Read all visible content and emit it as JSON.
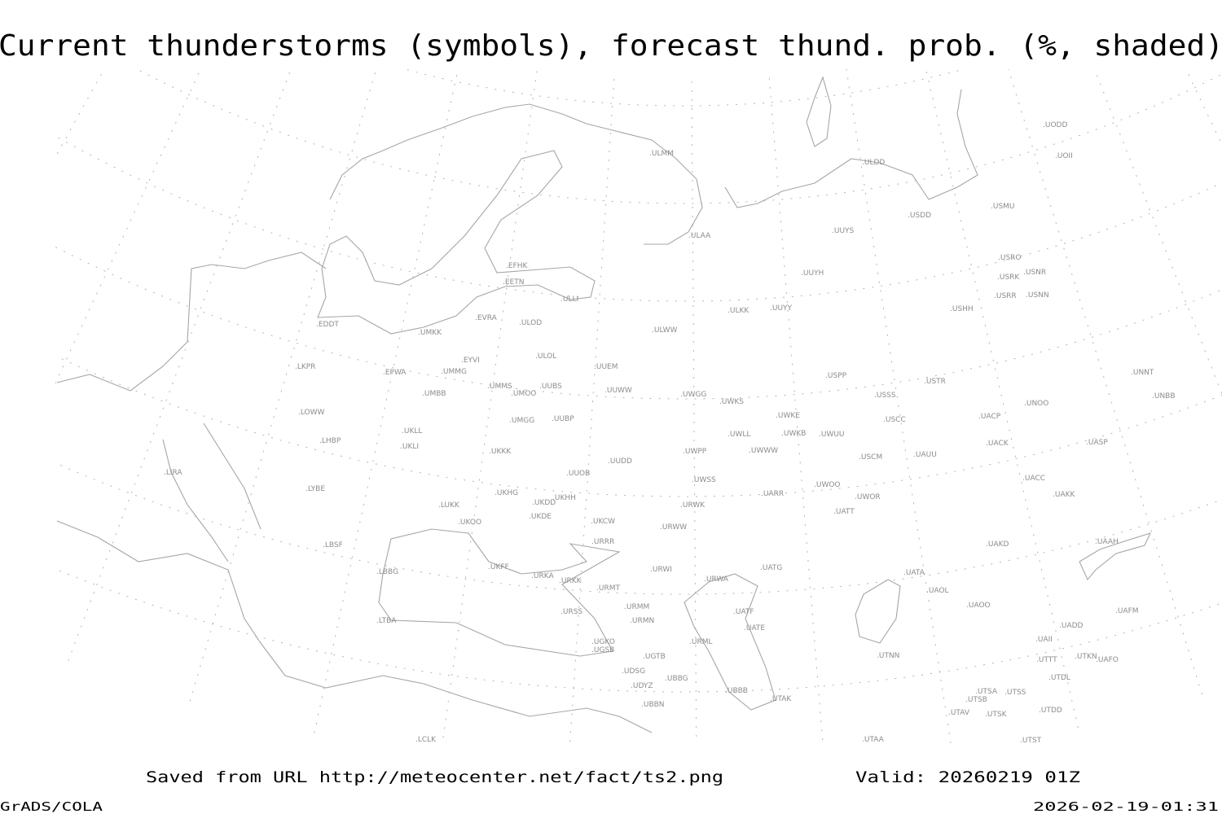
{
  "title": "Current thunderstorms (symbols), forecast thund. prob. (%, shaded)",
  "footer": {
    "saved_from": "Saved from URL http://meteocenter.net/fact/ts2.png",
    "valid": "Valid: 20260219 01Z",
    "software": "GrADS/COLA",
    "timestamp": "2026-02-19-01:31"
  },
  "map": {
    "coastline_color": "#a6a6a6",
    "label_color": "#8c8c8c",
    "graticule": "dotted",
    "thunderstorm_symbols_visible": false,
    "probability_shading_visible": false,
    "stations": [
      "UODD",
      "UOII",
      "ULMM",
      "ULDD",
      "USDD",
      "USMU",
      "UUYS",
      "ULAA",
      "USRO",
      "USRK",
      "USNR",
      "USRR",
      "USNN",
      "USHH",
      "UUYH",
      "EFHK",
      "EETN",
      "ULLI",
      "ULKK",
      "UUYY",
      "EVRA",
      "ULOD",
      "EDDT",
      "UMKK",
      "ULWW",
      "ULOL",
      "EYVI",
      "UUEM",
      "LKPR",
      "EPWA",
      "UMMG",
      "USPP",
      "UNNT",
      "USTR",
      "UMMS",
      "UUBS",
      "UMOO",
      "UUWW",
      "USSS",
      "UNBB",
      "UWGG",
      "UMBB",
      "UWKS",
      "UNOO",
      "UACP",
      "UWKE",
      "LOWW",
      "USCC",
      "UMGG",
      "UUBP",
      "UKLL",
      "UWKB",
      "UWUU",
      "UWLL",
      "LHBP",
      "UACK",
      "UASP",
      "UKLI",
      "UWWW",
      "UWPP",
      "UKKK",
      "USCM",
      "UAUU",
      "UUDD",
      "LIRA",
      "UUOB",
      "UWSS",
      "UACC",
      "LYBE",
      "UKHG",
      "UWOO",
      "UARR",
      "UAKK",
      "UWOR",
      "UKHH",
      "UKDD",
      "LUKK",
      "URWK",
      "UATT",
      "UKDE",
      "UKOO",
      "UKCW",
      "URWW",
      "URRR",
      "LBSF",
      "UAKD",
      "UAAH",
      "UKFF",
      "LBBG",
      "UATG",
      "URWI",
      "URKA",
      "UATA",
      "URKK",
      "URWA",
      "URMT",
      "UAOL",
      "UAOO",
      "URMM",
      "URSS",
      "UATF",
      "UAFM",
      "LTBA",
      "URMN",
      "UADD",
      "UATE",
      "UGKO",
      "UAII",
      "URML",
      "UGSB",
      "UTNN",
      "UGTB",
      "UTTT",
      "UTKN",
      "UAFO",
      "UDSG",
      "UBBG",
      "UTDL",
      "UDYZ",
      "UBBB",
      "UTSA",
      "UTSS",
      "UTSB",
      "UTAK",
      "UBBN",
      "UTAV",
      "UTSK",
      "UTDD",
      "LCLK",
      "UTAA",
      "UTST"
    ]
  }
}
